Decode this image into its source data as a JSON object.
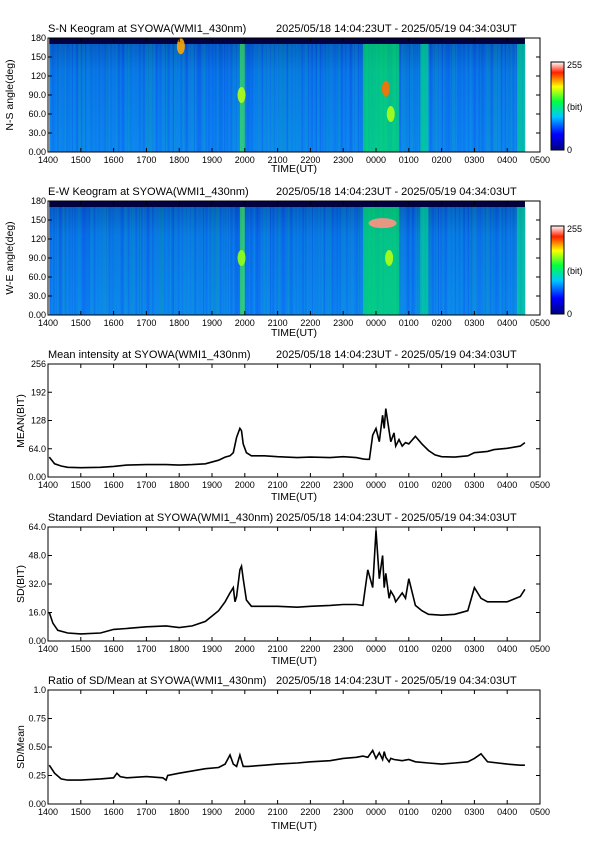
{
  "colorbar": {
    "max_label": "255",
    "unit_label": "(bit)",
    "min_label": "0"
  },
  "chart_data": [
    {
      "type": "heatmap",
      "title": "S-N Keogram at SYOWA(WMI1_430nm)",
      "time_range": "2025/05/18 14:04:23UT - 2025/05/19 04:34:03UT",
      "xlabel": "TIME(UT)",
      "ylabel": "N-S angle(deg)",
      "xlim": [
        1400,
        2900
      ],
      "ylim": [
        0,
        180
      ],
      "x_tick_labels": [
        "1400",
        "1500",
        "1600",
        "1700",
        "1800",
        "1900",
        "2000",
        "2100",
        "2200",
        "2300",
        "0000",
        "0100",
        "0200",
        "0300",
        "0400",
        "0500"
      ],
      "y_ticks": [
        0,
        30,
        60,
        90,
        120,
        150,
        180
      ],
      "y_tick_labels": [
        "0.00",
        "30.0",
        "60.0",
        "90.0",
        "120",
        "150",
        "180"
      ],
      "data_extent": [
        1404,
        2854
      ],
      "colorscale": [
        0,
        255
      ],
      "features": [
        {
          "t": 1805,
          "angle": 167,
          "level": 200
        },
        {
          "t": 1990,
          "angle": 90,
          "level": 170
        },
        {
          "t": 2430,
          "angle": 100,
          "level": 210
        },
        {
          "t": 2445,
          "angle": 60,
          "level": 170
        }
      ]
    },
    {
      "type": "heatmap",
      "title": "E-W Keogram at SYOWA(WMI1_430nm)",
      "time_range": "2025/05/18 14:04:23UT - 2025/05/19 04:34:03UT",
      "xlabel": "TIME(UT)",
      "ylabel": "W-E angle(deg)",
      "xlim": [
        1400,
        2900
      ],
      "ylim": [
        0,
        180
      ],
      "x_tick_labels": [
        "1400",
        "1500",
        "1600",
        "1700",
        "1800",
        "1900",
        "2000",
        "2100",
        "2200",
        "2300",
        "0000",
        "0100",
        "0200",
        "0300",
        "0400",
        "0500"
      ],
      "y_ticks": [
        0,
        30,
        60,
        90,
        120,
        150,
        180
      ],
      "y_tick_labels": [
        "0.00",
        "30.0",
        "60.0",
        "90.0",
        "120",
        "150",
        "180"
      ],
      "data_extent": [
        1404,
        2854
      ],
      "colorscale": [
        0,
        255
      ],
      "features": [
        {
          "t": 2420,
          "angle": 145,
          "level": 240
        },
        {
          "t": 1990,
          "angle": 90,
          "level": 165
        },
        {
          "t": 2440,
          "angle": 90,
          "level": 170
        }
      ]
    },
    {
      "type": "line",
      "title": "Mean intensity at SYOWA(WMI1_430nm)",
      "time_range": "2025/05/18 14:04:23UT - 2025/05/19 04:34:03UT",
      "xlabel": "TIME(UT)",
      "ylabel": "MEAN(BIT)",
      "xlim": [
        1400,
        2900
      ],
      "ylim": [
        0,
        256
      ],
      "x_tick_labels": [
        "1400",
        "1500",
        "1600",
        "1700",
        "1800",
        "1900",
        "2000",
        "2100",
        "2200",
        "2300",
        "0000",
        "0100",
        "0200",
        "0300",
        "0400",
        "0500"
      ],
      "y_ticks": [
        0,
        64,
        128,
        192,
        256
      ],
      "y_tick_labels": [
        "0.00",
        "64.0",
        "128",
        "192",
        "256"
      ],
      "x": [
        1404,
        1420,
        1440,
        1460,
        1500,
        1560,
        1600,
        1640,
        1700,
        1760,
        1800,
        1840,
        1880,
        1920,
        1940,
        1955,
        1965,
        1975,
        1985,
        1990,
        1995,
        2005,
        2020,
        2060,
        2100,
        2160,
        2200,
        2260,
        2300,
        2340,
        2360,
        2370,
        2380,
        2390,
        2400,
        2410,
        2420,
        2425,
        2430,
        2440,
        2445,
        2455,
        2460,
        2470,
        2480,
        2490,
        2500,
        2520,
        2540,
        2560,
        2580,
        2600,
        2640,
        2680,
        2700,
        2740,
        2760,
        2800,
        2840,
        2854
      ],
      "y": [
        45,
        30,
        25,
        22,
        21,
        22,
        24,
        27,
        28,
        28,
        27,
        28,
        30,
        38,
        45,
        48,
        55,
        90,
        110,
        105,
        75,
        55,
        48,
        48,
        46,
        44,
        45,
        44,
        46,
        44,
        41,
        40,
        40,
        95,
        110,
        80,
        140,
        110,
        155,
        105,
        80,
        100,
        70,
        85,
        70,
        78,
        75,
        92,
        75,
        60,
        50,
        46,
        45,
        48,
        55,
        58,
        62,
        65,
        70,
        78
      ]
    },
    {
      "type": "line",
      "title": "Standard Deviation at SYOWA(WMI1_430nm)",
      "time_range": "2025/05/18 14:04:23UT - 2025/05/19 04:34:03UT",
      "xlabel": "TIME(UT)",
      "ylabel": "SD(BIT)",
      "xlim": [
        1400,
        2900
      ],
      "ylim": [
        0,
        64
      ],
      "x_tick_labels": [
        "1400",
        "1500",
        "1600",
        "1700",
        "1800",
        "1900",
        "2000",
        "2100",
        "2200",
        "2300",
        "0000",
        "0100",
        "0200",
        "0300",
        "0400",
        "0500"
      ],
      "y_ticks": [
        0,
        16,
        32,
        48,
        64
      ],
      "y_tick_labels": [
        "0.00",
        "16.0",
        "32.0",
        "48.0",
        "64.0"
      ],
      "x": [
        1404,
        1415,
        1430,
        1460,
        1500,
        1560,
        1600,
        1640,
        1700,
        1760,
        1800,
        1840,
        1880,
        1920,
        1940,
        1955,
        1965,
        1970,
        1975,
        1985,
        1990,
        1995,
        2005,
        2020,
        2060,
        2100,
        2160,
        2200,
        2260,
        2300,
        2340,
        2360,
        2375,
        2390,
        2400,
        2410,
        2420,
        2425,
        2430,
        2440,
        2445,
        2455,
        2460,
        2480,
        2490,
        2500,
        2520,
        2540,
        2560,
        2600,
        2640,
        2680,
        2700,
        2720,
        2740,
        2800,
        2840,
        2854
      ],
      "y": [
        16,
        10,
        6,
        4.5,
        4,
        4.5,
        6.5,
        7,
        8,
        8.5,
        7.5,
        8.5,
        11,
        17,
        22,
        27,
        30,
        22,
        25,
        40,
        42,
        35,
        23,
        19.5,
        19.5,
        19.5,
        19,
        19.5,
        20,
        20.5,
        20.5,
        20,
        40,
        30,
        62,
        35,
        48,
        30,
        38,
        24,
        28,
        25,
        22,
        27,
        24,
        35,
        20,
        17,
        15,
        14.5,
        15,
        17,
        30,
        24,
        22,
        22,
        25,
        29
      ]
    },
    {
      "type": "line",
      "title": "Ratio of SD/Mean at SYOWA(WMI1_430nm)",
      "time_range": "2025/05/18 14:04:23UT - 2025/05/19 04:34:03UT",
      "xlabel": "TIME(UT)",
      "ylabel": "SD/Mean",
      "xlim": [
        1400,
        2900
      ],
      "ylim": [
        0,
        1.0
      ],
      "x_tick_labels": [
        "1400",
        "1500",
        "1600",
        "1700",
        "1800",
        "1900",
        "2000",
        "2100",
        "2200",
        "2300",
        "0000",
        "0100",
        "0200",
        "0300",
        "0400",
        "0500"
      ],
      "y_ticks": [
        0,
        0.25,
        0.5,
        0.75,
        1.0
      ],
      "y_tick_labels": [
        "0.00",
        "0.25",
        "0.50",
        "0.75",
        "1.0"
      ],
      "x": [
        1404,
        1420,
        1440,
        1460,
        1500,
        1560,
        1600,
        1610,
        1620,
        1640,
        1700,
        1750,
        1760,
        1765,
        1800,
        1840,
        1880,
        1920,
        1940,
        1955,
        1965,
        1975,
        1985,
        1990,
        1995,
        2010,
        2060,
        2100,
        2160,
        2200,
        2260,
        2300,
        2340,
        2360,
        2375,
        2390,
        2400,
        2410,
        2420,
        2425,
        2430,
        2440,
        2445,
        2455,
        2480,
        2500,
        2520,
        2560,
        2600,
        2640,
        2680,
        2700,
        2720,
        2740,
        2800,
        2840,
        2854
      ],
      "y": [
        0.34,
        0.27,
        0.22,
        0.21,
        0.21,
        0.22,
        0.23,
        0.27,
        0.24,
        0.23,
        0.24,
        0.23,
        0.21,
        0.25,
        0.27,
        0.29,
        0.31,
        0.32,
        0.35,
        0.43,
        0.35,
        0.33,
        0.43,
        0.38,
        0.33,
        0.33,
        0.34,
        0.35,
        0.36,
        0.37,
        0.38,
        0.4,
        0.41,
        0.42,
        0.41,
        0.47,
        0.4,
        0.45,
        0.39,
        0.46,
        0.41,
        0.37,
        0.4,
        0.39,
        0.38,
        0.39,
        0.37,
        0.36,
        0.35,
        0.36,
        0.37,
        0.4,
        0.44,
        0.37,
        0.35,
        0.34,
        0.34
      ]
    }
  ]
}
